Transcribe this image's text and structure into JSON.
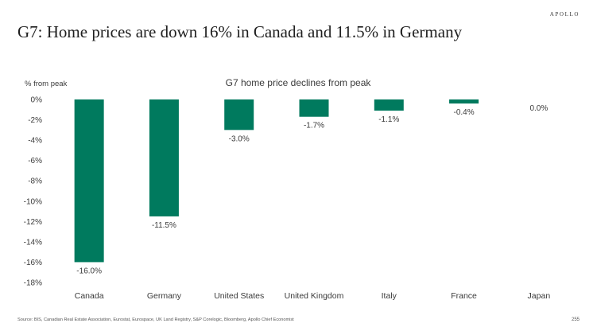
{
  "brand": "APOLLO",
  "headline": "G7: Home prices are down 16% in Canada and 11.5% in Germany",
  "source": "Source: BIS, Canadian Real Estate Association, Eurostat, Eurospace, UK Land Registry, S&P Corelogic, Bloomberg, Apollo Chief Economist",
  "page_number": "255",
  "colors": {
    "bar": "#007a5e",
    "text": "#3a3a3a",
    "axis": "#d9d9d9"
  },
  "chart_data": {
    "type": "bar",
    "title": "G7 home price declines from peak",
    "ylabel": "% from peak",
    "xlabel": "",
    "ylim": [
      -18,
      0
    ],
    "yticks": [
      0,
      -2,
      -4,
      -6,
      -8,
      -10,
      -12,
      -14,
      -16,
      -18
    ],
    "ytick_labels": [
      "0%",
      "-2%",
      "-4%",
      "-6%",
      "-8%",
      "-10%",
      "-12%",
      "-14%",
      "-16%",
      "-18%"
    ],
    "categories": [
      "Canada",
      "Germany",
      "United States",
      "United Kingdom",
      "Italy",
      "France",
      "Japan"
    ],
    "values": [
      -16.0,
      -11.5,
      -3.0,
      -1.7,
      -1.1,
      -0.4,
      0.0
    ],
    "data_labels": [
      "-16.0%",
      "-11.5%",
      "-3.0%",
      "-1.7%",
      "-1.1%",
      "-0.4%",
      "0.0%"
    ],
    "grid": false,
    "legend": "none"
  }
}
